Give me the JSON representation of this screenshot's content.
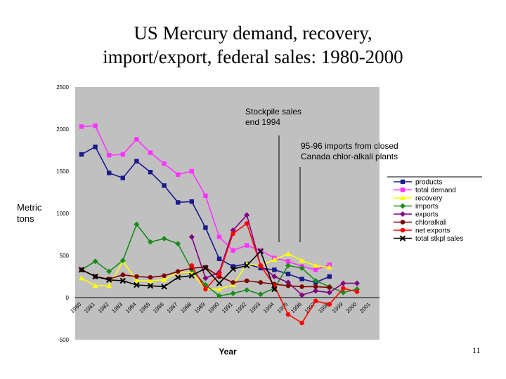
{
  "slide": {
    "title_line1": "US Mercury demand, recovery,",
    "title_line2": "import/export, federal sales: 1980-2000",
    "page_number": "11"
  },
  "chart_data": {
    "type": "line",
    "xlabel": "Year",
    "ylabel": "Metric\ntons",
    "ylim": [
      -500,
      2500
    ],
    "y_ticks": [
      -500,
      0,
      500,
      1000,
      1500,
      2000,
      2500
    ],
    "x": [
      "1980",
      "1981",
      "1982",
      "1983",
      "1984",
      "1985",
      "1986",
      "1987",
      "1988",
      "1989",
      "1990",
      "1991",
      "1992",
      "1993",
      "1994",
      "1995",
      "1996",
      "1997",
      "1998",
      "1999",
      "2000",
      "2001"
    ],
    "grid": false,
    "legend_position": "right",
    "annotations": [
      {
        "text": "Stockpile sales\nend 1994",
        "points_to": "1994"
      },
      {
        "text": "95-96 imports from closed\nCanada chlor-alkali plants",
        "points_to": "1995"
      }
    ],
    "series": [
      {
        "name": "products",
        "color": "#1a1a8c",
        "marker": "square",
        "values": [
          1700,
          1790,
          1480,
          1420,
          1620,
          1490,
          1330,
          1130,
          1140,
          830,
          460,
          370,
          400,
          350,
          330,
          280,
          220,
          180,
          250,
          null,
          null,
          null
        ]
      },
      {
        "name": "total demand",
        "color": "#ff33ff",
        "marker": "square",
        "values": [
          2030,
          2040,
          1690,
          1700,
          1880,
          1720,
          1590,
          1460,
          1500,
          1210,
          720,
          560,
          620,
          560,
          470,
          430,
          370,
          330,
          390,
          null,
          null,
          null
        ]
      },
      {
        "name": "recovery",
        "color": "#ffff00",
        "marker": "triangle",
        "values": [
          230,
          140,
          140,
          430,
          200,
          200,
          210,
          300,
          300,
          100,
          100,
          150,
          400,
          380,
          450,
          520,
          440,
          380,
          360,
          null,
          null,
          null
        ]
      },
      {
        "name": "imports",
        "color": "#1a8c1a",
        "marker": "diamond",
        "values": [
          330,
          430,
          310,
          440,
          870,
          660,
          700,
          640,
          330,
          150,
          20,
          50,
          90,
          40,
          110,
          380,
          350,
          200,
          130,
          60,
          100,
          null
        ]
      },
      {
        "name": "exports",
        "color": "#800080",
        "marker": "diamond",
        "values": [
          null,
          null,
          null,
          null,
          null,
          null,
          null,
          null,
          720,
          230,
          300,
          800,
          980,
          380,
          250,
          180,
          30,
          80,
          60,
          170,
          170,
          null
        ]
      },
      {
        "name": "chloralkali",
        "color": "#800000",
        "marker": "circle",
        "values": [
          330,
          250,
          220,
          270,
          250,
          240,
          260,
          310,
          350,
          360,
          250,
          180,
          200,
          180,
          160,
          140,
          130,
          130,
          120,
          null,
          null,
          null
        ]
      },
      {
        "name": "net exports",
        "color": "#ff0000",
        "marker": "circle",
        "values": [
          null,
          null,
          null,
          null,
          null,
          null,
          null,
          null,
          380,
          100,
          280,
          760,
          880,
          380,
          140,
          -200,
          -300,
          -40,
          -80,
          110,
          70,
          null
        ]
      },
      {
        "name": "total stkpl sales",
        "color": "#000000",
        "marker": "x",
        "values": [
          330,
          250,
          210,
          200,
          150,
          140,
          130,
          240,
          260,
          350,
          170,
          340,
          380,
          550,
          100,
          null,
          null,
          null,
          null,
          null,
          null,
          null
        ]
      }
    ]
  }
}
